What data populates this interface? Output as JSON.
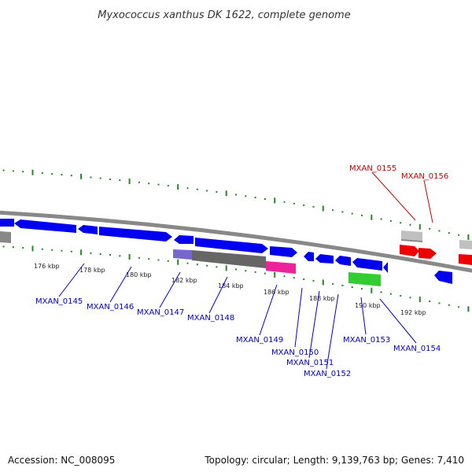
{
  "title": "Myxococcus xanthus DK 1622, complete genome",
  "footer": {
    "accession": "Accession: NC_008095",
    "summary": "Topology: circular; Length: 9,139,763 bp; Genes: 7,410"
  },
  "colors": {
    "cds": "#0000ee",
    "rrna": "#ee0000",
    "gray_feature": "#c0c0c0",
    "backbone": "#888888",
    "ticks": "#228822",
    "label_blue": "#0000cc",
    "label_red": "#cc0000",
    "green_feature": "#33cc33",
    "purple_feature": "#7766cc",
    "dark_feature": "#666666",
    "magenta_feature": "#ee2299"
  },
  "tick_labels": [
    "176 kbp",
    "178 kbp",
    "180 kbp",
    "182 kbp",
    "184 kbp",
    "186 kbp",
    "188 kbp",
    "190 kbp",
    "192 kbp"
  ],
  "gene_labels": [
    "MXAN_0145",
    "MXAN_0146",
    "MXAN_0147",
    "MXAN_0148",
    "MXAN_0149",
    "MXAN_0150",
    "MXAN_0151",
    "MXAN_0152",
    "MXAN_0153",
    "MXAN_0154",
    "MXAN_0155",
    "MXAN_0156"
  ]
}
